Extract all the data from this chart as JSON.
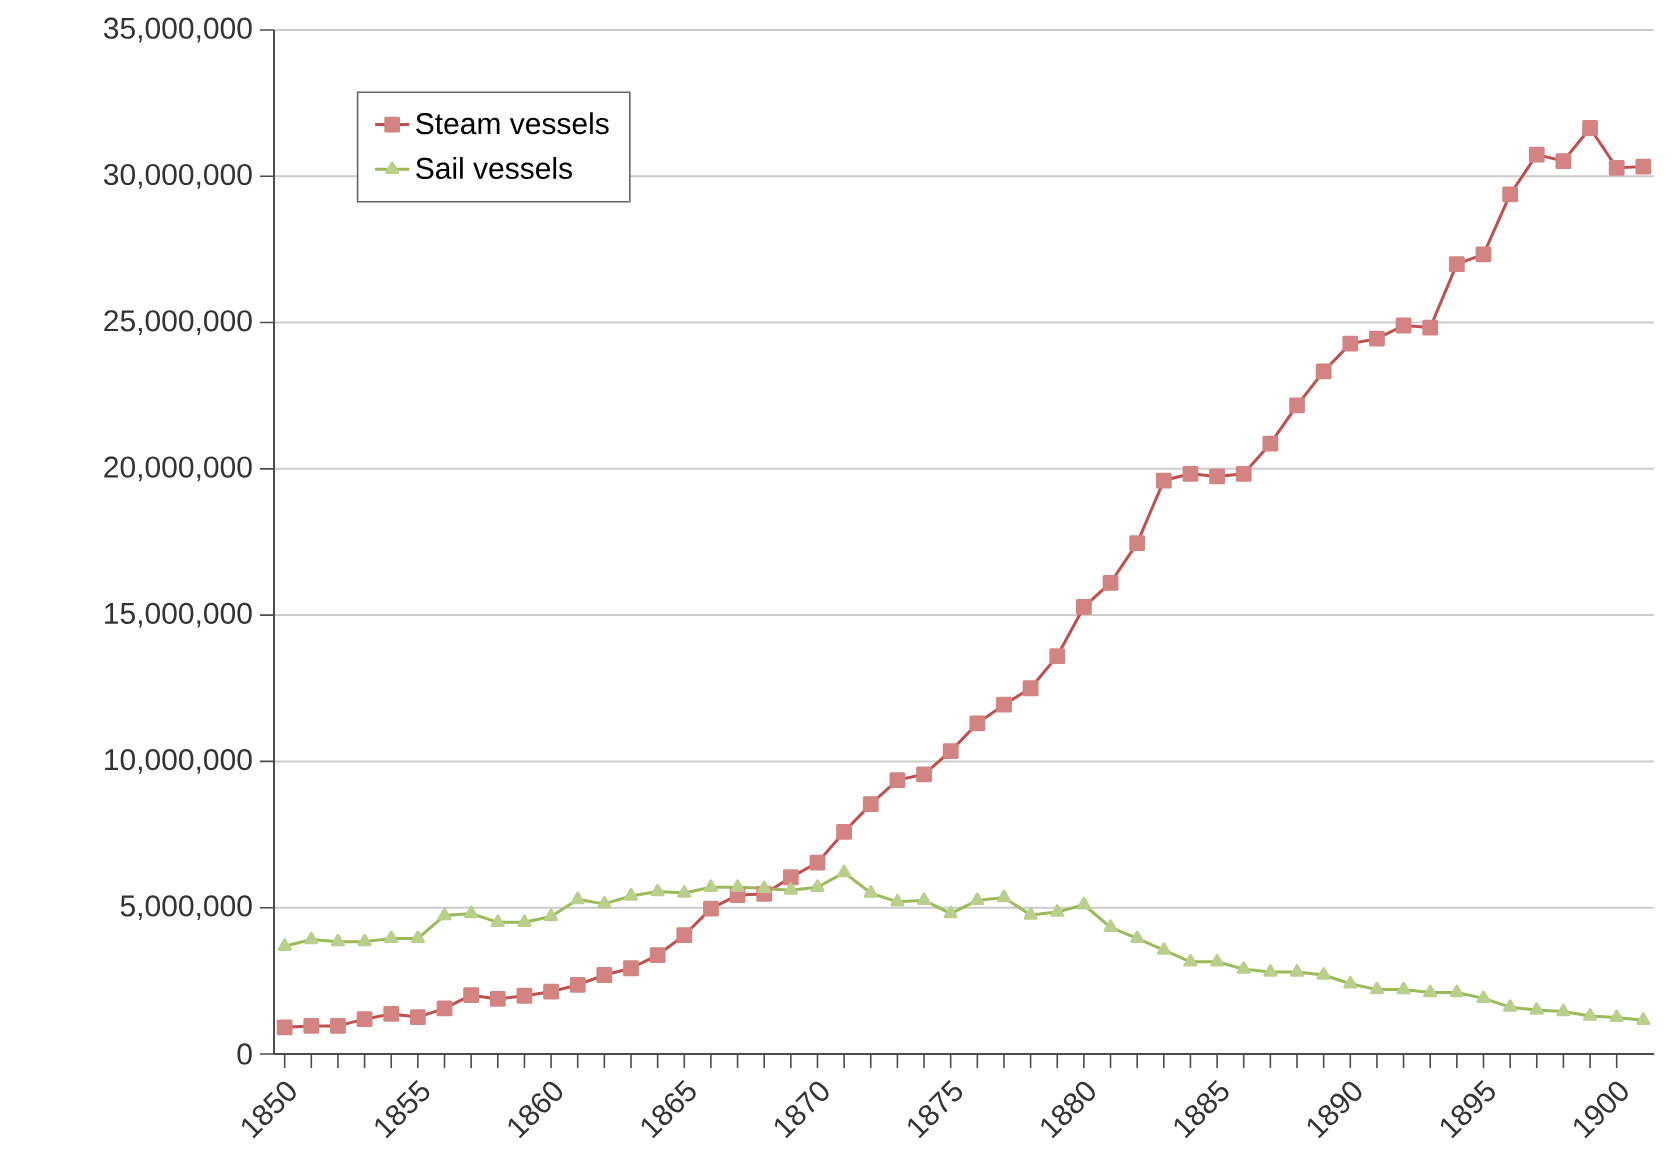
{
  "chart_data": {
    "type": "line",
    "x": [
      1850,
      1851,
      1852,
      1853,
      1854,
      1855,
      1856,
      1857,
      1858,
      1859,
      1860,
      1861,
      1862,
      1863,
      1864,
      1865,
      1866,
      1867,
      1868,
      1869,
      1870,
      1871,
      1872,
      1873,
      1874,
      1875,
      1876,
      1877,
      1878,
      1879,
      1880,
      1881,
      1882,
      1883,
      1884,
      1885,
      1886,
      1887,
      1888,
      1889,
      1890,
      1891,
      1892,
      1893,
      1894,
      1895,
      1896,
      1897,
      1898,
      1899,
      1900,
      1901
    ],
    "series": [
      {
        "name": "Steam vessels",
        "color": "#c0504d",
        "marker": "square",
        "values": [
          910000,
          960000,
          960000,
          1190000,
          1370000,
          1260000,
          1560000,
          2010000,
          1880000,
          1990000,
          2130000,
          2360000,
          2700000,
          2930000,
          3380000,
          4060000,
          4970000,
          5430000,
          5470000,
          6040000,
          6540000,
          7590000,
          8540000,
          9360000,
          9560000,
          10350000,
          11300000,
          11940000,
          12500000,
          13600000,
          15280000,
          16100000,
          17460000,
          19600000,
          19830000,
          19740000,
          19830000,
          20860000,
          22170000,
          23330000,
          24280000,
          24450000,
          24900000,
          24830000,
          27000000,
          27330000,
          29380000,
          30740000,
          30520000,
          31650000,
          30290000,
          30330000
        ]
      },
      {
        "name": "Sail vessels",
        "color": "#9bbb59",
        "marker": "triangle",
        "values": [
          3680000,
          3910000,
          3840000,
          3840000,
          3950000,
          3950000,
          4730000,
          4800000,
          4500000,
          4500000,
          4700000,
          5280000,
          5130000,
          5400000,
          5550000,
          5500000,
          5700000,
          5700000,
          5660000,
          5600000,
          5700000,
          6200000,
          5500000,
          5200000,
          5250000,
          4800000,
          5250000,
          5350000,
          4750000,
          4850000,
          5100000,
          4330000,
          3950000,
          3550000,
          3150000,
          3150000,
          2900000,
          2800000,
          2800000,
          2700000,
          2400000,
          2200000,
          2200000,
          2100000,
          2100000,
          1900000,
          1600000,
          1500000,
          1450000,
          1300000,
          1250000,
          1150000
        ]
      }
    ],
    "xlim": [
      1849.6,
      1901.4
    ],
    "xticks": [
      1850,
      1855,
      1860,
      1865,
      1870,
      1875,
      1880,
      1885,
      1890,
      1895,
      1900
    ],
    "ylim": [
      0,
      35000000
    ],
    "yticks": [
      {
        "value": 0,
        "label": "0"
      },
      {
        "value": 5000000,
        "label": "5,000,000"
      },
      {
        "value": 10000000,
        "label": "10,000,000"
      },
      {
        "value": 15000000,
        "label": "15,000,000"
      },
      {
        "value": 20000000,
        "label": "20,000,000"
      },
      {
        "value": 25000000,
        "label": "25,000,000"
      },
      {
        "value": 30000000,
        "label": "30,000,000"
      },
      {
        "value": 35000000,
        "label": "35,000,000"
      }
    ],
    "grid": "y",
    "legend": "top left",
    "line_style": "solid"
  }
}
